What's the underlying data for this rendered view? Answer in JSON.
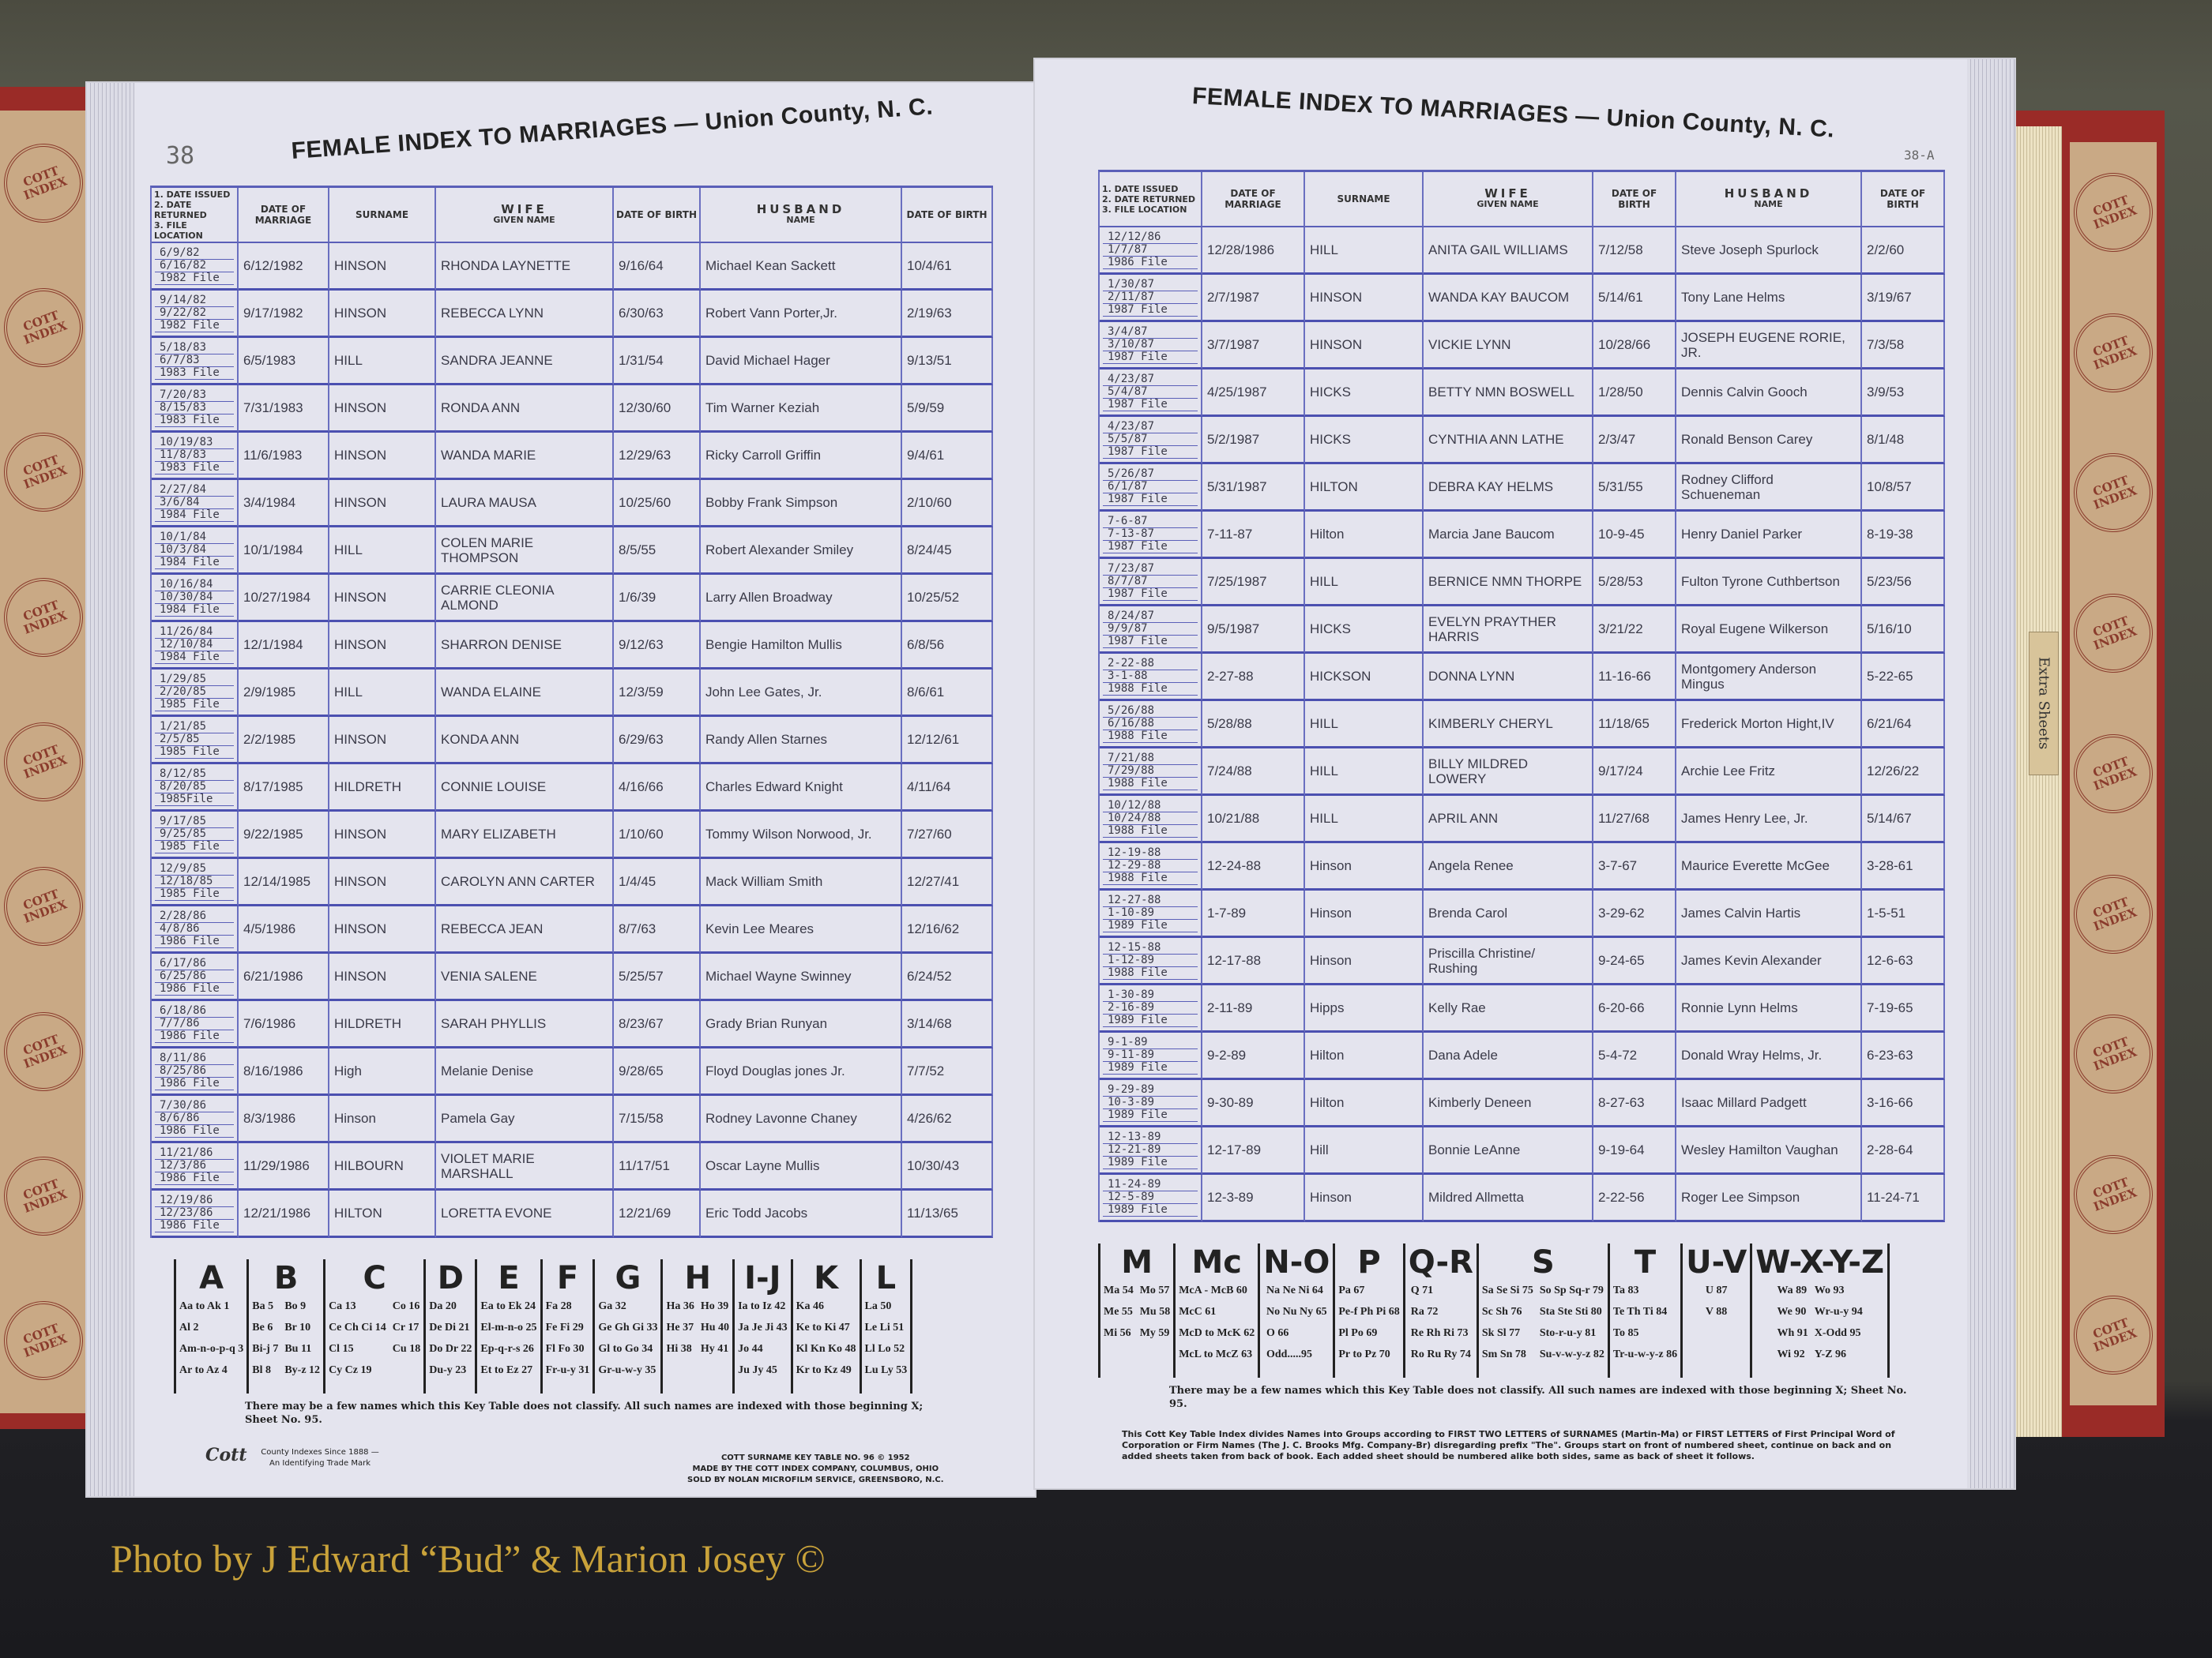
{
  "credit": "Photo by J Edward “Bud” & Marion Josey ©",
  "tab_label": "Extra Sheets",
  "emblem_text": "COTT INDEX",
  "colors": {
    "ink_lines": "#4b50b0",
    "paper": "#e4e4ee",
    "cover": "#9a2b27",
    "credit": "#c9a23a"
  },
  "headers": {
    "issued": [
      "1. DATE ISSUED",
      "2. DATE RETURNED",
      "3. FILE LOCATION"
    ],
    "marriage": "DATE OF MARRIAGE",
    "wife": "WIFE",
    "surname": "SURNAME",
    "given": "GIVEN NAME",
    "wife_dob": "DATE OF BIRTH",
    "husband": "HUSBAND",
    "husband_name": "NAME",
    "husband_dob": "DATE OF BIRTH"
  },
  "left_page": {
    "page_number": "38",
    "title": "FEMALE INDEX TO MARRIAGES — Union County, N. C.",
    "rows": [
      [
        "6/9/82",
        "6/16/82",
        "1982 File",
        "6/12/1982",
        "HINSON",
        "RHONDA LAYNETTE",
        "9/16/64",
        "Michael Kean Sackett",
        "10/4/61"
      ],
      [
        "9/14/82",
        "9/22/82",
        "1982 File",
        "9/17/1982",
        "HINSON",
        "REBECCA LYNN",
        "6/30/63",
        "Robert Vann Porter,Jr.",
        "2/19/63"
      ],
      [
        "5/18/83",
        "6/7/83",
        "1983 File",
        "6/5/1983",
        "HILL",
        "SANDRA JEANNE",
        "1/31/54",
        "David Michael Hager",
        "9/13/51"
      ],
      [
        "7/20/83",
        "8/15/83",
        "1983 File",
        "7/31/1983",
        "HINSON",
        "RONDA ANN",
        "12/30/60",
        "Tim Warner Keziah",
        "5/9/59"
      ],
      [
        "10/19/83",
        "11/8/83",
        "1983 File",
        "11/6/1983",
        "HINSON",
        "WANDA MARIE",
        "12/29/63",
        "Ricky Carroll Griffin",
        "9/4/61"
      ],
      [
        "2/27/84",
        "3/6/84",
        "1984 File",
        "3/4/1984",
        "HINSON",
        "LAURA MAUSA",
        "10/25/60",
        "Bobby Frank Simpson",
        "2/10/60"
      ],
      [
        "10/1/84",
        "10/3/84",
        "1984 File",
        "10/1/1984",
        "HILL",
        "COLEN MARIE THOMPSON",
        "8/5/55",
        "Robert Alexander Smiley",
        "8/24/45"
      ],
      [
        "10/16/84",
        "10/30/84",
        "1984 File",
        "10/27/1984",
        "HINSON",
        "CARRIE CLEONIA ALMOND",
        "1/6/39",
        "Larry Allen Broadway",
        "10/25/52"
      ],
      [
        "11/26/84",
        "12/10/84",
        "1984 File",
        "12/1/1984",
        "HINSON",
        "SHARRON DENISE",
        "9/12/63",
        "Bengie Hamilton Mullis",
        "6/8/56"
      ],
      [
        "1/29/85",
        "2/20/85",
        "1985 File",
        "2/9/1985",
        "HILL",
        "WANDA ELAINE",
        "12/3/59",
        "John Lee Gates, Jr.",
        "8/6/61"
      ],
      [
        "1/21/85",
        "2/5/85",
        "1985 File",
        "2/2/1985",
        "HINSON",
        "KONDA ANN",
        "6/29/63",
        "Randy Allen Starnes",
        "12/12/61"
      ],
      [
        "8/12/85",
        "8/20/85",
        "1985File",
        "8/17/1985",
        "HILDRETH",
        "CONNIE LOUISE",
        "4/16/66",
        "Charles Edward Knight",
        "4/11/64"
      ],
      [
        "9/17/85",
        "9/25/85",
        "1985 File",
        "9/22/1985",
        "HINSON",
        "MARY ELIZABETH",
        "1/10/60",
        "Tommy Wilson Norwood, Jr.",
        "7/27/60"
      ],
      [
        "12/9/85",
        "12/18/85",
        "1985 File",
        "12/14/1985",
        "HINSON",
        "CAROLYN ANN CARTER",
        "1/4/45",
        "Mack William Smith",
        "12/27/41"
      ],
      [
        "2/28/86",
        "4/8/86",
        "1986 File",
        "4/5/1986",
        "HINSON",
        "REBECCA JEAN",
        "8/7/63",
        "Kevin Lee Meares",
        "12/16/62"
      ],
      [
        "6/17/86",
        "6/25/86",
        "1986 File",
        "6/21/1986",
        "HINSON",
        "VENIA SALENE",
        "5/25/57",
        "Michael Wayne Swinney",
        "6/24/52"
      ],
      [
        "6/18/86",
        "7/7/86",
        "1986 File",
        "7/6/1986",
        "HILDRETH",
        "SARAH PHYLLIS",
        "8/23/67",
        "Grady Brian Runyan",
        "3/14/68"
      ],
      [
        "8/11/86",
        "8/25/86",
        "1986 File",
        "8/16/1986",
        "High",
        "Melanie Denise",
        "9/28/65",
        "Floyd Douglas jones Jr.",
        "7/7/52"
      ],
      [
        "7/30/86",
        "8/6/86",
        "1986 File",
        "8/3/1986",
        "Hinson",
        "Pamela Gay",
        "7/15/58",
        "Rodney Lavonne Chaney",
        "4/26/62"
      ],
      [
        "11/21/86",
        "12/3/86",
        "1986 File",
        "11/29/1986",
        "HILBOURN",
        "VIOLET MARIE MARSHALL",
        "11/17/51",
        "Oscar Layne Mullis",
        "10/30/43"
      ],
      [
        "12/19/86",
        "12/23/86",
        "1986 File",
        "12/21/1986",
        "HILTON",
        "LORETTA EVONE",
        "12/21/69",
        "Eric Todd Jacobs",
        "11/13/65"
      ]
    ],
    "key": [
      {
        "letter": "A",
        "entries": [
          "Aa to Ak 1",
          "Al 2",
          "Am-n-o-p-q 3",
          "Ar to Az 4"
        ]
      },
      {
        "letter": "B",
        "entries": [
          "Ba 5",
          "Be 6",
          "Bi-j 7",
          "Bl 8",
          "Bo 9",
          "Br 10",
          "Bu 11",
          "By-z 12"
        ]
      },
      {
        "letter": "C",
        "entries": [
          "Ca 13",
          "Ce Ch Ci 14",
          "Cl 15",
          "Cy Cz 19",
          "Co 16",
          "Cr 17",
          "Cu 18"
        ]
      },
      {
        "letter": "D",
        "entries": [
          "Da 20",
          "De Di 21",
          "Do Dr 22",
          "Du-y 23"
        ]
      },
      {
        "letter": "E",
        "entries": [
          "Ea to Ek 24",
          "El-m-n-o 25",
          "Ep-q-r-s 26",
          "Et to Ez 27"
        ]
      },
      {
        "letter": "F",
        "entries": [
          "Fa 28",
          "Fe Fi 29",
          "Fl Fo 30",
          "Fr-u-y 31"
        ]
      },
      {
        "letter": "G",
        "entries": [
          "Ga 32",
          "Ge Gh Gi 33",
          "Gl to Go 34",
          "Gr-u-w-y 35"
        ]
      },
      {
        "letter": "H",
        "entries": [
          "Ha 36",
          "He 37",
          "Hi 38",
          "",
          "Ho 39",
          "Hu 40",
          "Hy 41"
        ]
      },
      {
        "letter": "I-J",
        "entries": [
          "Ia to Iz 42",
          "Ja Je Ji 43",
          "Jo 44",
          "Ju Jy 45"
        ]
      },
      {
        "letter": "K",
        "entries": [
          "Ka 46",
          "Ke to Ki 47",
          "Kl Kn Ko 48",
          "Kr to Kz 49"
        ]
      },
      {
        "letter": "L",
        "entries": [
          "La 50",
          "Le Li 51",
          "Ll Lo 52",
          "Lu Ly 53"
        ]
      }
    ],
    "key_note": "There may be a few names which this Key Table does not classify.  All such names are indexed with those beginning X; Sheet No. 95.",
    "logo": "Cott",
    "logo_caption": "County Indexes Since 1888 — An Identifying Trade Mark",
    "imprint": [
      "COTT SURNAME KEY TABLE NO. 96 © 1952",
      "MADE BY THE COTT INDEX COMPANY, COLUMBUS, OHIO",
      "SOLD BY NOLAN MICROFILM SERVICE, GREENSBORO, N.C."
    ]
  },
  "right_page": {
    "page_number": "38-A",
    "title": "FEMALE INDEX TO MARRIAGES — Union County, N. C.",
    "rows": [
      [
        "12/12/86",
        "1/7/87",
        "1986 File",
        "12/28/1986",
        "HILL",
        "ANITA GAIL WILLIAMS",
        "7/12/58",
        "Steve Joseph Spurlock",
        "2/2/60"
      ],
      [
        "1/30/87",
        "2/11/87",
        "1987 File",
        "2/7/1987",
        "HINSON",
        "WANDA KAY BAUCOM",
        "5/14/61",
        "Tony Lane Helms",
        "3/19/67"
      ],
      [
        "3/4/87",
        "3/10/87",
        "1987 File",
        "3/7/1987",
        "HINSON",
        "VICKIE LYNN",
        "10/28/66",
        "JOSEPH EUGENE RORIE, JR.",
        "7/3/58"
      ],
      [
        "4/23/87",
        "5/4/87",
        "1987 File",
        "4/25/1987",
        "HICKS",
        "BETTY NMN BOSWELL",
        "1/28/50",
        "Dennis Calvin Gooch",
        "3/9/53"
      ],
      [
        "4/23/87",
        "5/5/87",
        "1987 File",
        "5/2/1987",
        "HICKS",
        "CYNTHIA ANN LATHE",
        "2/3/47",
        "Ronald Benson Carey",
        "8/1/48"
      ],
      [
        "5/26/87",
        "6/1/87",
        "1987 File",
        "5/31/1987",
        "HILTON",
        "DEBRA KAY HELMS",
        "5/31/55",
        "Rodney Clifford Schueneman",
        "10/8/57"
      ],
      [
        "7-6-87",
        "7-13-87",
        "1987 File",
        "7-11-87",
        "Hilton",
        "Marcia Jane Baucom",
        "10-9-45",
        "Henry Daniel Parker",
        "8-19-38"
      ],
      [
        "7/23/87",
        "8/7/87",
        "1987 File",
        "7/25/1987",
        "HILL",
        "BERNICE NMN THORPE",
        "5/28/53",
        "Fulton Tyrone Cuthbertson",
        "5/23/56"
      ],
      [
        "8/24/87",
        "9/9/87",
        "1987 File",
        "9/5/1987",
        "HICKS",
        "EVELYN PRAYTHER HARRIS",
        "3/21/22",
        "Royal Eugene Wilkerson",
        "5/16/10"
      ],
      [
        "2-22-88",
        "3-1-88",
        "1988 File",
        "2-27-88",
        "HICKSON",
        "DONNA LYNN",
        "11-16-66",
        "Montgomery Anderson Mingus",
        "5-22-65"
      ],
      [
        "5/26/88",
        "6/16/88",
        "1988 File",
        "5/28/88",
        "HILL",
        "KIMBERLY CHERYL",
        "11/18/65",
        "Frederick Morton Hight,IV",
        "6/21/64"
      ],
      [
        "7/21/88",
        "7/29/88",
        "1988 File",
        "7/24/88",
        "HILL",
        "BILLY MILDRED LOWERY",
        "9/17/24",
        "Archie Lee Fritz",
        "12/26/22"
      ],
      [
        "10/12/88",
        "10/24/88",
        "1988 File",
        "10/21/88",
        "HILL",
        "APRIL ANN",
        "11/27/68",
        "James Henry Lee, Jr.",
        "5/14/67"
      ],
      [
        "12-19-88",
        "12-29-88",
        "1988 File",
        "12-24-88",
        "Hinson",
        "Angela Renee",
        "3-7-67",
        "Maurice Everette McGee",
        "3-28-61"
      ],
      [
        "12-27-88",
        "1-10-89",
        "1989 File",
        "1-7-89",
        "Hinson",
        "Brenda Carol",
        "3-29-62",
        "James Calvin Hartis",
        "1-5-51"
      ],
      [
        "12-15-88",
        "1-12-89",
        "1988 File",
        "12-17-88",
        "Hinson",
        "Priscilla Christine/ Rushing",
        "9-24-65",
        "James Kevin Alexander",
        "12-6-63"
      ],
      [
        "1-30-89",
        "2-16-89",
        "1989 File",
        "2-11-89",
        "Hipps",
        "Kelly Rae",
        "6-20-66",
        "Ronnie Lynn Helms",
        "7-19-65"
      ],
      [
        "9-1-89",
        "9-11-89",
        "1989 File",
        "9-2-89",
        "Hilton",
        "Dana Adele",
        "5-4-72",
        "Donald Wray Helms, Jr.",
        "6-23-63"
      ],
      [
        "9-29-89",
        "10-3-89",
        "1989 File",
        "9-30-89",
        "Hilton",
        "Kimberly Deneen",
        "8-27-63",
        "Isaac Millard Padgett",
        "3-16-66"
      ],
      [
        "12-13-89",
        "12-21-89",
        "1989 File",
        "12-17-89",
        "Hill",
        "Bonnie LeAnne",
        "9-19-64",
        "Wesley Hamilton Vaughan",
        "2-28-64"
      ],
      [
        "11-24-89",
        "12-5-89",
        "1989 File",
        "12-3-89",
        "Hinson",
        "Mildred Allmetta",
        "2-22-56",
        "Roger Lee Simpson",
        "11-24-71"
      ]
    ],
    "key": [
      {
        "letter": "M",
        "entries": [
          "Ma 54",
          "Me 55",
          "Mi 56",
          "",
          "Mo 57",
          "Mu 58",
          "My 59"
        ]
      },
      {
        "letter": "Mc",
        "entries": [
          "McA - McB 60",
          "McC 61",
          "McD to McK 62",
          "McL to McZ 63"
        ]
      },
      {
        "letter": "N-O",
        "entries": [
          "Na Ne Ni 64",
          "No Nu Ny 65",
          "O 66",
          "Odd.....95"
        ]
      },
      {
        "letter": "P",
        "entries": [
          "Pa 67",
          "Pe-f Ph Pi 68",
          "Pl Po 69",
          "Pr to Pz 70"
        ]
      },
      {
        "letter": "Q-R",
        "entries": [
          "Q 71",
          "Ra 72",
          "Re Rh Ri 73",
          "Ro Ru Ry 74"
        ]
      },
      {
        "letter": "S",
        "entries": [
          "Sa Se Si 75",
          "Sc Sh 76",
          "Sk Sl 77",
          "Sm Sn 78",
          "So Sp Sq-r 79",
          "Sta Ste Sti 80",
          "Sto-r-u-y 81",
          "Su-v-w-y-z 82"
        ]
      },
      {
        "letter": "T",
        "entries": [
          "Ta 83",
          "Te Th Ti 84",
          "To 85",
          "Tr-u-w-y-z 86"
        ]
      },
      {
        "letter": "U-V",
        "entries": [
          "U 87",
          "V 88"
        ]
      },
      {
        "letter": "W-X-Y-Z",
        "entries": [
          "Wa 89",
          "We 90",
          "Wh 91",
          "Wi 92",
          "Wo 93",
          "Wr-u-y 94",
          "X-Odd 95",
          "Y-Z 96"
        ]
      }
    ],
    "key_note": "There may be a few names which this Key Table does not classify.  All such names are indexed with those beginning X; Sheet No. 95.",
    "instructions": "This Cott Key Table Index divides Names into Groups according to FIRST TWO LETTERS of SURNAMES (Martin-Ma) or FIRST LETTERS of First Principal Word of Corporation or Firm Names (The J. C. Brooks Mfg. Company-Br) disregarding prefix \"The\". Groups start on front of numbered sheet, continue on back and on added sheets taken from back of book. Each added sheet should be numbered alike both sides, same as back of sheet it follows."
  }
}
